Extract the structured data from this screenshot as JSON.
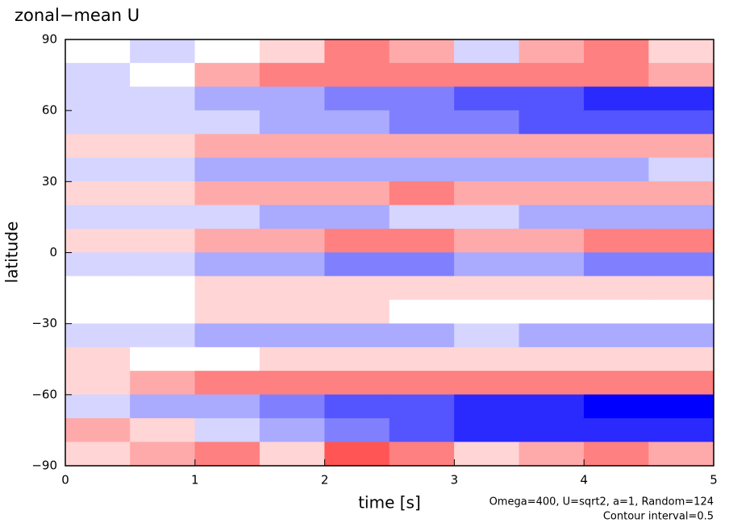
{
  "chart_data": {
    "type": "contour",
    "title": "zonal−mean U",
    "xlabel": "time [s]",
    "ylabel": "latitude",
    "annotations": [
      "Omega=400, U=sqrt2, a=1, Random=124",
      "Contour interval=0.5"
    ],
    "xlim": [
      0,
      5
    ],
    "ylim": [
      -90,
      90
    ],
    "xticks": [
      0,
      1,
      2,
      3,
      4,
      5
    ],
    "yticks": [
      {
        "value": -90,
        "label": "−90"
      },
      {
        "value": -60,
        "label": "−60"
      },
      {
        "value": -30,
        "label": "−30"
      },
      0,
      30,
      60,
      90
    ],
    "x": [
      0.25,
      0.75,
      1.25,
      1.75,
      2.25,
      2.75,
      3.25,
      3.75,
      4.25,
      4.75
    ],
    "y": [
      85,
      75,
      65,
      55,
      45,
      35,
      25,
      15,
      5,
      -5,
      -15,
      -25,
      -35,
      -45,
      -55,
      -65,
      -75,
      -85
    ],
    "z": [
      [
        0,
        -1,
        0,
        1,
        3,
        2,
        -1,
        2,
        3,
        1
      ],
      [
        -1,
        0,
        2,
        3,
        3,
        3,
        3,
        3,
        3,
        2
      ],
      [
        -1,
        -1,
        -2,
        -2,
        -3,
        -3,
        -4,
        -4,
        -5,
        -5
      ],
      [
        -1,
        -1,
        -1,
        -2,
        -2,
        -3,
        -3,
        -4,
        -4,
        -4
      ],
      [
        1,
        1,
        2,
        2,
        2,
        2,
        2,
        2,
        2,
        2
      ],
      [
        -1,
        -1,
        -2,
        -2,
        -2,
        -2,
        -2,
        -2,
        -2,
        -1
      ],
      [
        1,
        1,
        2,
        2,
        2,
        3,
        2,
        2,
        2,
        2
      ],
      [
        -1,
        -1,
        -1,
        -2,
        -2,
        -1,
        -1,
        -2,
        -2,
        -2
      ],
      [
        1,
        1,
        2,
        2,
        3,
        3,
        2,
        2,
        3,
        3
      ],
      [
        -1,
        -1,
        -2,
        -2,
        -3,
        -3,
        -2,
        -2,
        -3,
        -3
      ],
      [
        0,
        0,
        1,
        1,
        1,
        1,
        1,
        1,
        1,
        1
      ],
      [
        0,
        0,
        1,
        1,
        1,
        0,
        0,
        0,
        0,
        0
      ],
      [
        -1,
        -1,
        -2,
        -2,
        -2,
        -2,
        -1,
        -2,
        -2,
        -2
      ],
      [
        1,
        0,
        0,
        1,
        1,
        1,
        1,
        1,
        1,
        1
      ],
      [
        1,
        2,
        3,
        3,
        3,
        3,
        3,
        3,
        3,
        3
      ],
      [
        -1,
        -2,
        -2,
        -3,
        -4,
        -4,
        -5,
        -5,
        -6,
        -6
      ],
      [
        2,
        1,
        -1,
        -2,
        -3,
        -4,
        -5,
        -5,
        -5,
        -5
      ],
      [
        1,
        2,
        3,
        1,
        4,
        3,
        1,
        2,
        3,
        2
      ]
    ]
  }
}
